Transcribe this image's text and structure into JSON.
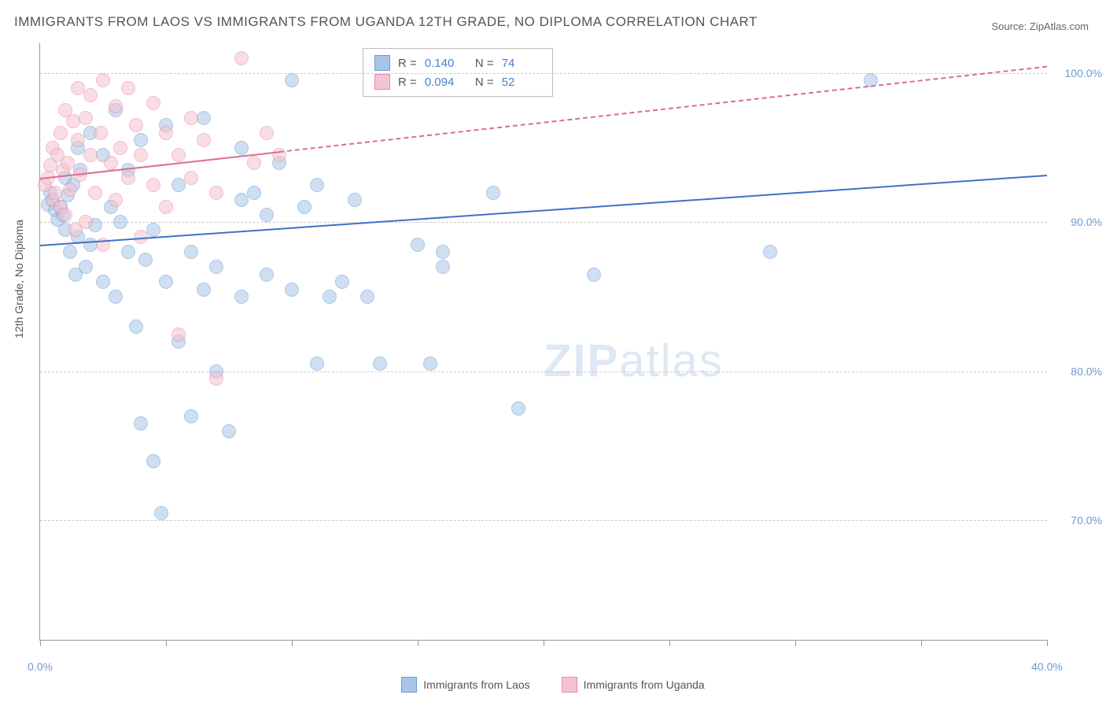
{
  "title": "IMMIGRANTS FROM LAOS VS IMMIGRANTS FROM UGANDA 12TH GRADE, NO DIPLOMA CORRELATION CHART",
  "source": "Source: ZipAtlas.com",
  "ylabel": "12th Grade, No Diploma",
  "watermark_bold": "ZIP",
  "watermark_thin": "atlas",
  "chart": {
    "type": "scatter",
    "xlim": [
      0,
      40
    ],
    "ylim": [
      62,
      102
    ],
    "xticks": [
      0,
      5,
      10,
      15,
      20,
      25,
      30,
      35,
      40
    ],
    "xtick_labels": {
      "0": "0.0%",
      "40": "40.0%"
    },
    "yticks": [
      70,
      80,
      90,
      100
    ],
    "ytick_labels": {
      "70": "70.0%",
      "80": "80.0%",
      "90": "90.0%",
      "100": "100.0%"
    },
    "background_color": "#ffffff",
    "grid_color": "#cccccc",
    "series": [
      {
        "name": "Immigrants from Laos",
        "fill_color": "#a8c5e8",
        "stroke_color": "#6b9bd1",
        "R": "0.140",
        "N": "74",
        "trend": {
          "x1": 0,
          "y1": 88.5,
          "x2": 40,
          "y2": 93.2,
          "dash": false,
          "color": "#3d72c4"
        },
        "points": [
          [
            0.3,
            91.2
          ],
          [
            0.4,
            92.0
          ],
          [
            0.5,
            91.5
          ],
          [
            0.6,
            90.8
          ],
          [
            0.7,
            90.2
          ],
          [
            0.8,
            91.0
          ],
          [
            0.9,
            90.5
          ],
          [
            1.0,
            89.5
          ],
          [
            1.0,
            93.0
          ],
          [
            1.1,
            91.8
          ],
          [
            1.2,
            88.0
          ],
          [
            1.3,
            92.5
          ],
          [
            1.4,
            86.5
          ],
          [
            1.5,
            95.0
          ],
          [
            1.5,
            89.0
          ],
          [
            1.6,
            93.5
          ],
          [
            1.8,
            87.0
          ],
          [
            2.0,
            96.0
          ],
          [
            2.0,
            88.5
          ],
          [
            2.2,
            89.8
          ],
          [
            2.5,
            94.5
          ],
          [
            2.5,
            86.0
          ],
          [
            2.8,
            91.0
          ],
          [
            3.0,
            97.5
          ],
          [
            3.0,
            85.0
          ],
          [
            3.2,
            90.0
          ],
          [
            3.5,
            88.0
          ],
          [
            3.5,
            93.5
          ],
          [
            3.8,
            83.0
          ],
          [
            4.0,
            95.5
          ],
          [
            4.0,
            76.5
          ],
          [
            4.2,
            87.5
          ],
          [
            4.5,
            89.5
          ],
          [
            4.5,
            74.0
          ],
          [
            4.8,
            70.5
          ],
          [
            5.0,
            96.5
          ],
          [
            5.0,
            86.0
          ],
          [
            5.5,
            92.5
          ],
          [
            5.5,
            82.0
          ],
          [
            6.0,
            88.0
          ],
          [
            6.0,
            77.0
          ],
          [
            6.5,
            97.0
          ],
          [
            6.5,
            85.5
          ],
          [
            7.0,
            87.0
          ],
          [
            7.0,
            80.0
          ],
          [
            7.5,
            76.0
          ],
          [
            8.0,
            91.5
          ],
          [
            8.0,
            95.0
          ],
          [
            8.0,
            85.0
          ],
          [
            8.5,
            92.0
          ],
          [
            9.0,
            90.5
          ],
          [
            9.0,
            86.5
          ],
          [
            9.5,
            94.0
          ],
          [
            10.0,
            85.5
          ],
          [
            10.0,
            99.5
          ],
          [
            10.5,
            91.0
          ],
          [
            11.0,
            92.5
          ],
          [
            11.0,
            80.5
          ],
          [
            11.5,
            85.0
          ],
          [
            12.0,
            86.0
          ],
          [
            12.5,
            91.5
          ],
          [
            13.0,
            85.0
          ],
          [
            13.5,
            80.5
          ],
          [
            15.0,
            88.5
          ],
          [
            15.5,
            80.5
          ],
          [
            16.0,
            88.0
          ],
          [
            16.0,
            87.0
          ],
          [
            18.0,
            92.0
          ],
          [
            19.0,
            77.5
          ],
          [
            22.0,
            86.5
          ],
          [
            29.0,
            88.0
          ],
          [
            33.0,
            99.5
          ]
        ]
      },
      {
        "name": "Immigrants from Uganda",
        "fill_color": "#f5c3d0",
        "stroke_color": "#e889a7",
        "R": "0.094",
        "N": "52",
        "trend": {
          "x1": 0,
          "y1": 93.0,
          "x2": 40,
          "y2": 100.5,
          "dash": true,
          "dash_split": 9.5,
          "color": "#e06b8f"
        },
        "points": [
          [
            0.2,
            92.5
          ],
          [
            0.3,
            93.0
          ],
          [
            0.4,
            93.8
          ],
          [
            0.5,
            91.5
          ],
          [
            0.5,
            95.0
          ],
          [
            0.6,
            92.0
          ],
          [
            0.7,
            94.5
          ],
          [
            0.8,
            91.0
          ],
          [
            0.8,
            96.0
          ],
          [
            0.9,
            93.5
          ],
          [
            1.0,
            90.5
          ],
          [
            1.0,
            97.5
          ],
          [
            1.1,
            94.0
          ],
          [
            1.2,
            92.2
          ],
          [
            1.3,
            96.8
          ],
          [
            1.4,
            89.5
          ],
          [
            1.5,
            95.5
          ],
          [
            1.5,
            99.0
          ],
          [
            1.6,
            93.2
          ],
          [
            1.8,
            97.0
          ],
          [
            1.8,
            90.0
          ],
          [
            2.0,
            94.5
          ],
          [
            2.0,
            98.5
          ],
          [
            2.2,
            92.0
          ],
          [
            2.4,
            96.0
          ],
          [
            2.5,
            99.5
          ],
          [
            2.5,
            88.5
          ],
          [
            2.8,
            94.0
          ],
          [
            3.0,
            97.8
          ],
          [
            3.0,
            91.5
          ],
          [
            3.2,
            95.0
          ],
          [
            3.5,
            99.0
          ],
          [
            3.5,
            93.0
          ],
          [
            3.8,
            96.5
          ],
          [
            4.0,
            89.0
          ],
          [
            4.0,
            94.5
          ],
          [
            4.5,
            98.0
          ],
          [
            4.5,
            92.5
          ],
          [
            5.0,
            96.0
          ],
          [
            5.0,
            91.0
          ],
          [
            5.5,
            94.5
          ],
          [
            5.5,
            82.5
          ],
          [
            6.0,
            97.0
          ],
          [
            6.0,
            93.0
          ],
          [
            6.5,
            95.5
          ],
          [
            7.0,
            92.0
          ],
          [
            7.0,
            79.5
          ],
          [
            8.0,
            101.0
          ],
          [
            8.5,
            94.0
          ],
          [
            9.0,
            96.0
          ],
          [
            9.5,
            94.5
          ]
        ]
      }
    ]
  },
  "corr_legend": {
    "rows": [
      {
        "swatch_fill": "#a8c5e8",
        "swatch_border": "#6b9bd1",
        "R": "0.140",
        "N": "74"
      },
      {
        "swatch_fill": "#f5c3d0",
        "swatch_border": "#e889a7",
        "R": "0.094",
        "N": "52"
      }
    ]
  },
  "bottom_legend": [
    {
      "swatch_fill": "#a8c5e8",
      "swatch_border": "#6b9bd1",
      "label": "Immigrants from Laos"
    },
    {
      "swatch_fill": "#f5c3d0",
      "swatch_border": "#e889a7",
      "label": "Immigrants from Uganda"
    }
  ]
}
